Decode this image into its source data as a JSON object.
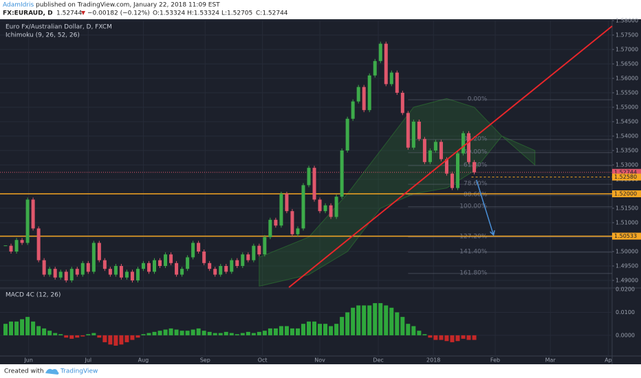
{
  "header": {
    "author": "AdamIdris",
    "published": "published on TradingView.com, January 22, 2018 11:09 EST",
    "symbol": "FX:EURAUD, D",
    "price": "1.52744",
    "change": "−0.00182 (−0.12%)",
    "open": "O:1.53324",
    "high": "H:1.53324",
    "low": "L:1.52705",
    "close": "C:1.52744"
  },
  "chart_data": [
    {
      "type": "candlestick",
      "title": "Euro Fx/Australian Dollar, D, FXCM",
      "indicator": "Ichimoku (9, 26, 52, 26)",
      "values": [
        1.502,
        1.5,
        1.504,
        1.503,
        1.518,
        1.508,
        1.497,
        1.492,
        1.494,
        1.491,
        1.493,
        1.49,
        1.494,
        1.492,
        1.496,
        1.493,
        1.503,
        1.497,
        1.494,
        1.492,
        1.495,
        1.491,
        1.493,
        1.49,
        1.494,
        1.496,
        1.493,
        1.497,
        1.495,
        1.499,
        1.496,
        1.492,
        1.494,
        1.498,
        1.503,
        1.5,
        1.496,
        1.494,
        1.492,
        1.495,
        1.493,
        1.497,
        1.495,
        1.499,
        1.497,
        1.502,
        1.499,
        1.505,
        1.511,
        1.509,
        1.52,
        1.514,
        1.506,
        1.508,
        1.523,
        1.529,
        1.518,
        1.514,
        1.516,
        1.512,
        1.519,
        1.535,
        1.546,
        1.552,
        1.557,
        1.549,
        1.561,
        1.566,
        1.572,
        1.558,
        1.562,
        1.555,
        1.548,
        1.536,
        1.545,
        1.539,
        1.531,
        1.535,
        1.538,
        1.532,
        1.527,
        1.522,
        1.534,
        1.541,
        1.531,
        1.52744
      ],
      "up_color": "#3dab4a",
      "down_color": "#e0576c",
      "xlim": [
        -1,
        110
      ],
      "xticks": [
        {
          "value": 4.2,
          "label": "Jun"
        },
        {
          "value": 15,
          "label": "Jul"
        },
        {
          "value": 25,
          "label": "Aug"
        },
        {
          "value": 36.2,
          "label": "Sep"
        },
        {
          "value": 46.6,
          "label": "Oct"
        },
        {
          "value": 57,
          "label": "Nov"
        },
        {
          "value": 67.6,
          "label": "Dec"
        },
        {
          "value": 77.6,
          "label": "2018"
        },
        {
          "value": 88.8,
          "label": "Feb"
        },
        {
          "value": 98.8,
          "label": "Mar"
        },
        {
          "value": 109.3,
          "label": "Ap"
        }
      ],
      "ylim": [
        1.48762,
        1.58
      ],
      "yticks": [
        {
          "value": 1.49,
          "label": "1.49000"
        },
        {
          "value": 1.495,
          "label": "1.49500"
        },
        {
          "value": 1.5,
          "label": "1.50000"
        },
        {
          "value": 1.505,
          "label": "1.50500"
        },
        {
          "value": 1.51,
          "label": "1.51000"
        },
        {
          "value": 1.515,
          "label": "1.51500"
        },
        {
          "value": 1.52,
          "label": "1.52000"
        },
        {
          "value": 1.525,
          "label": "1.52500"
        },
        {
          "value": 1.53,
          "label": "1.53000"
        },
        {
          "value": 1.535,
          "label": "1.53500"
        },
        {
          "value": 1.54,
          "label": "1.54000"
        },
        {
          "value": 1.545,
          "label": "1.54500"
        },
        {
          "value": 1.55,
          "label": "1.55000"
        },
        {
          "value": 1.555,
          "label": "1.55500"
        },
        {
          "value": 1.56,
          "label": "1.56000"
        },
        {
          "value": 1.565,
          "label": "1.56500"
        },
        {
          "value": 1.57,
          "label": "1.57000"
        },
        {
          "value": 1.575,
          "label": "1.57500"
        },
        {
          "value": 1.58,
          "label": "1.58000"
        }
      ],
      "grid": true,
      "horizontal_lines": [
        {
          "value": 1.52744,
          "label": "1.52744",
          "color": "#e0576c",
          "style": "dotted",
          "from": -1
        },
        {
          "value": 1.5258,
          "label": "1.52580",
          "color": "#f5a623",
          "style": "dashed",
          "from": 84.5
        },
        {
          "value": 1.52,
          "label": "1.52000",
          "color": "#f5a623",
          "style": "solid",
          "from": -1
        },
        {
          "value": 1.50533,
          "label": "1.50533",
          "color": "#f5a623",
          "style": "solid",
          "from": -1
        }
      ],
      "trend_line": {
        "x": [
          51.4,
          110
        ],
        "y": [
          1.4876,
          1.5781
        ],
        "color": "#e8262a"
      },
      "arrow": {
        "x": [
          85.4,
          88.5
        ],
        "y": [
          1.5248,
          1.5057
        ],
        "color": "#4a90d9"
      },
      "fib_levels": {
        "labels": [
          "0.00%",
          "38.20%",
          "50.00%",
          "61.80%",
          "78.60%",
          "88.60%",
          "100.00%",
          "127.20%",
          "141.40%",
          "161.80%"
        ],
        "values": [
          1.5526,
          1.5388,
          1.5343,
          1.5298,
          1.5233,
          1.5195,
          1.5155,
          1.505,
          1.4998,
          1.4924
        ],
        "from": 73,
        "color": "#6b7080"
      },
      "cloud": {
        "x": [
          46,
          55,
          62,
          68,
          74,
          80,
          85,
          90,
          96
        ],
        "upper": [
          1.498,
          1.505,
          1.52,
          1.535,
          1.55,
          1.553,
          1.55,
          1.54,
          1.535
        ],
        "lower": [
          1.488,
          1.492,
          1.5,
          1.515,
          1.52,
          1.522,
          1.528,
          1.54,
          1.53
        ],
        "color": "#2e7d32"
      }
    },
    {
      "type": "histogram",
      "title": "MACD 4C (12, 26)",
      "values": [
        0.005,
        0.006,
        0.006,
        0.007,
        0.008,
        0.006,
        0.004,
        0.003,
        0.002,
        0.001,
        0.0005,
        -0.001,
        -0.0015,
        -0.001,
        -0.0005,
        0.0005,
        0.001,
        -0.001,
        -0.003,
        -0.004,
        -0.0045,
        -0.004,
        -0.003,
        -0.002,
        -0.001,
        0.0005,
        0.001,
        0.0015,
        0.002,
        0.0025,
        0.003,
        0.0025,
        0.002,
        0.002,
        0.0025,
        0.003,
        0.002,
        0.0015,
        0.001,
        0.001,
        0.0015,
        0.001,
        0.0005,
        0.001,
        0.0015,
        0.001,
        0.0015,
        0.002,
        0.003,
        0.003,
        0.004,
        0.004,
        0.003,
        0.003,
        0.005,
        0.006,
        0.006,
        0.005,
        0.005,
        0.004,
        0.005,
        0.008,
        0.01,
        0.012,
        0.013,
        0.013,
        0.013,
        0.014,
        0.014,
        0.013,
        0.012,
        0.01,
        0.008,
        0.005,
        0.004,
        0.002,
        0.0005,
        -0.001,
        -0.002,
        -0.002,
        -0.0025,
        -0.003,
        -0.0025,
        -0.0015,
        -0.002,
        -0.002
      ],
      "positive_color": "#2fa83c",
      "negative_color": "#c62828",
      "ylim": [
        -0.009,
        0.0203
      ],
      "yticks": [
        {
          "value": 0.02,
          "label": "0.0200"
        },
        {
          "value": 0.01,
          "label": "0.0100"
        },
        {
          "value": 0,
          "label": "0.0000"
        }
      ]
    }
  ],
  "footer": {
    "created": "Created with",
    "brand": "TradingView"
  }
}
